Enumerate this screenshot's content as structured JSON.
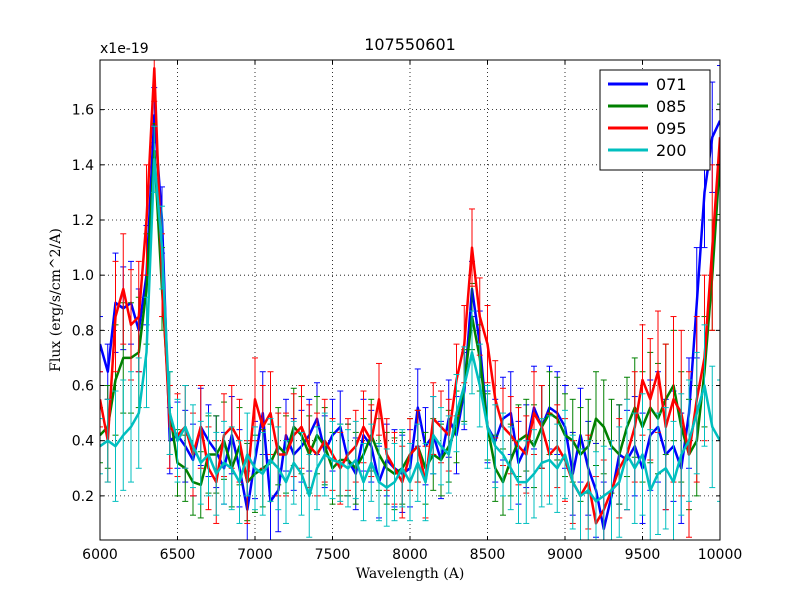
{
  "chart_data": {
    "type": "line",
    "title": "107550601",
    "xlabel": "Wavelength (A)",
    "ylabel": "Flux (erg/s/cm^2/A)",
    "y_offset_label": "x1e-19",
    "xlim": [
      6000,
      10000
    ],
    "ylim": [
      0.04,
      1.78
    ],
    "x_ticks": [
      6000,
      6500,
      7000,
      7500,
      8000,
      8500,
      9000,
      9500,
      10000
    ],
    "x_tick_labels": [
      "6000",
      "6500",
      "7000",
      "7500",
      "8000",
      "8500",
      "9000",
      "9500",
      "10000"
    ],
    "y_ticks": [
      0.2,
      0.4,
      0.6,
      0.8,
      1.0,
      1.2,
      1.4,
      1.6
    ],
    "y_tick_labels": [
      "0.2",
      "0.4",
      "0.6",
      "0.8",
      "1.0",
      "1.2",
      "1.4",
      "1.6"
    ],
    "grid": true,
    "legend_position": "top-right",
    "x": [
      6000,
      6050,
      6100,
      6150,
      6200,
      6250,
      6300,
      6350,
      6400,
      6450,
      6500,
      6550,
      6600,
      6650,
      6700,
      6750,
      6800,
      6850,
      6900,
      6950,
      7000,
      7050,
      7100,
      7150,
      7200,
      7250,
      7300,
      7350,
      7400,
      7450,
      7500,
      7550,
      7600,
      7650,
      7700,
      7750,
      7800,
      7850,
      7900,
      7950,
      8000,
      8050,
      8100,
      8150,
      8200,
      8250,
      8300,
      8350,
      8400,
      8450,
      8500,
      8550,
      8600,
      8650,
      8700,
      8750,
      8800,
      8850,
      8900,
      8950,
      9000,
      9050,
      9100,
      9150,
      9200,
      9250,
      9300,
      9350,
      9400,
      9450,
      9500,
      9550,
      9600,
      9650,
      9700,
      9750,
      9800,
      9850,
      9900,
      9950,
      10000
    ],
    "series": [
      {
        "name": "071",
        "color": "#0000ff",
        "values": [
          0.75,
          0.65,
          0.9,
          0.88,
          0.9,
          0.8,
          1.0,
          1.58,
          1.2,
          0.4,
          0.42,
          0.38,
          0.33,
          0.45,
          0.4,
          0.36,
          0.3,
          0.42,
          0.3,
          0.15,
          0.33,
          0.5,
          0.18,
          0.22,
          0.42,
          0.35,
          0.38,
          0.42,
          0.48,
          0.36,
          0.42,
          0.45,
          0.33,
          0.28,
          0.42,
          0.38,
          0.25,
          0.33,
          0.3,
          0.28,
          0.3,
          0.52,
          0.38,
          0.42,
          0.33,
          0.48,
          0.42,
          0.58,
          0.95,
          0.75,
          0.45,
          0.4,
          0.48,
          0.5,
          0.32,
          0.38,
          0.52,
          0.45,
          0.52,
          0.5,
          0.45,
          0.28,
          0.42,
          0.3,
          0.22,
          0.08,
          0.2,
          0.35,
          0.33,
          0.38,
          0.3,
          0.42,
          0.45,
          0.35,
          0.38,
          0.3,
          0.5,
          0.9,
          1.3,
          1.5,
          1.56
        ],
        "err": [
          0.1,
          0.1,
          0.18,
          0.15,
          0.15,
          0.15,
          0.18,
          0.1,
          0.12,
          0.12,
          0.12,
          0.13,
          0.13,
          0.14,
          0.13,
          0.13,
          0.13,
          0.14,
          0.14,
          0.14,
          0.14,
          0.15,
          0.15,
          0.15,
          0.13,
          0.13,
          0.13,
          0.13,
          0.13,
          0.13,
          0.13,
          0.13,
          0.13,
          0.13,
          0.13,
          0.13,
          0.13,
          0.13,
          0.14,
          0.14,
          0.14,
          0.14,
          0.14,
          0.14,
          0.14,
          0.14,
          0.14,
          0.14,
          0.1,
          0.12,
          0.13,
          0.15,
          0.15,
          0.15,
          0.15,
          0.15,
          0.15,
          0.15,
          0.15,
          0.15,
          0.15,
          0.15,
          0.17,
          0.17,
          0.17,
          0.17,
          0.17,
          0.18,
          0.18,
          0.18,
          0.2,
          0.2,
          0.2,
          0.2,
          0.2,
          0.2,
          0.2,
          0.2,
          0.2,
          0.2,
          0.2
        ]
      },
      {
        "name": "085",
        "color": "#008000",
        "values": [
          0.42,
          0.45,
          0.62,
          0.7,
          0.7,
          0.72,
          0.95,
          1.45,
          0.95,
          0.5,
          0.32,
          0.3,
          0.25,
          0.24,
          0.35,
          0.35,
          0.4,
          0.3,
          0.38,
          0.25,
          0.28,
          0.3,
          0.32,
          0.38,
          0.35,
          0.45,
          0.42,
          0.35,
          0.42,
          0.38,
          0.3,
          0.33,
          0.33,
          0.3,
          0.35,
          0.42,
          0.35,
          0.3,
          0.28,
          0.3,
          0.35,
          0.38,
          0.3,
          0.35,
          0.33,
          0.38,
          0.45,
          0.6,
          0.85,
          0.7,
          0.45,
          0.3,
          0.25,
          0.33,
          0.4,
          0.42,
          0.38,
          0.45,
          0.5,
          0.48,
          0.42,
          0.4,
          0.35,
          0.38,
          0.48,
          0.45,
          0.38,
          0.35,
          0.45,
          0.52,
          0.45,
          0.52,
          0.48,
          0.55,
          0.6,
          0.45,
          0.35,
          0.4,
          0.65,
          1.0,
          1.42
        ],
        "err": [
          0.1,
          0.15,
          0.2,
          0.2,
          0.2,
          0.2,
          0.2,
          0.1,
          0.15,
          0.15,
          0.12,
          0.12,
          0.12,
          0.12,
          0.14,
          0.14,
          0.14,
          0.14,
          0.14,
          0.14,
          0.14,
          0.14,
          0.14,
          0.14,
          0.14,
          0.14,
          0.14,
          0.14,
          0.14,
          0.14,
          0.13,
          0.13,
          0.13,
          0.13,
          0.13,
          0.13,
          0.13,
          0.13,
          0.13,
          0.13,
          0.13,
          0.13,
          0.13,
          0.13,
          0.13,
          0.13,
          0.13,
          0.13,
          0.12,
          0.12,
          0.12,
          0.12,
          0.12,
          0.13,
          0.13,
          0.13,
          0.15,
          0.15,
          0.15,
          0.15,
          0.15,
          0.15,
          0.17,
          0.17,
          0.17,
          0.17,
          0.17,
          0.18,
          0.18,
          0.18,
          0.2,
          0.2,
          0.2,
          0.2,
          0.2,
          0.2,
          0.2,
          0.2,
          0.2,
          0.2,
          0.2
        ]
      },
      {
        "name": "095",
        "color": "#ff0000",
        "values": [
          0.55,
          0.4,
          0.85,
          0.95,
          0.82,
          0.85,
          1.2,
          1.75,
          1.0,
          0.45,
          0.42,
          0.45,
          0.35,
          0.45,
          0.3,
          0.25,
          0.42,
          0.45,
          0.4,
          0.25,
          0.55,
          0.45,
          0.5,
          0.35,
          0.35,
          0.42,
          0.45,
          0.38,
          0.35,
          0.4,
          0.35,
          0.3,
          0.35,
          0.38,
          0.45,
          0.4,
          0.55,
          0.35,
          0.3,
          0.25,
          0.35,
          0.38,
          0.25,
          0.48,
          0.45,
          0.42,
          0.62,
          0.75,
          1.1,
          0.85,
          0.75,
          0.55,
          0.45,
          0.42,
          0.38,
          0.35,
          0.5,
          0.45,
          0.35,
          0.38,
          0.33,
          0.25,
          0.2,
          0.25,
          0.1,
          0.15,
          0.22,
          0.3,
          0.35,
          0.45,
          0.62,
          0.55,
          0.65,
          0.45,
          0.55,
          0.5,
          0.35,
          0.55,
          0.7,
          1.1,
          1.5
        ],
        "err": [
          0.1,
          0.15,
          0.2,
          0.2,
          0.2,
          0.2,
          0.2,
          0.12,
          0.15,
          0.15,
          0.15,
          0.15,
          0.15,
          0.15,
          0.15,
          0.15,
          0.15,
          0.15,
          0.15,
          0.15,
          0.15,
          0.15,
          0.15,
          0.15,
          0.15,
          0.15,
          0.15,
          0.15,
          0.15,
          0.15,
          0.13,
          0.13,
          0.13,
          0.13,
          0.13,
          0.13,
          0.13,
          0.13,
          0.13,
          0.13,
          0.13,
          0.13,
          0.13,
          0.13,
          0.13,
          0.13,
          0.13,
          0.14,
          0.14,
          0.14,
          0.14,
          0.14,
          0.14,
          0.14,
          0.14,
          0.14,
          0.15,
          0.15,
          0.15,
          0.15,
          0.15,
          0.15,
          0.17,
          0.17,
          0.17,
          0.18,
          0.18,
          0.18,
          0.2,
          0.2,
          0.2,
          0.22,
          0.22,
          0.3,
          0.3,
          0.3,
          0.3,
          0.3,
          0.3,
          0.3,
          0.3
        ]
      },
      {
        "name": "200",
        "color": "#00bfbf",
        "values": [
          0.38,
          0.4,
          0.38,
          0.42,
          0.45,
          0.5,
          0.72,
          1.42,
          1.1,
          0.5,
          0.4,
          0.45,
          0.38,
          0.32,
          0.35,
          0.28,
          0.32,
          0.3,
          0.25,
          0.35,
          0.3,
          0.28,
          0.33,
          0.3,
          0.25,
          0.32,
          0.28,
          0.2,
          0.3,
          0.35,
          0.33,
          0.32,
          0.3,
          0.33,
          0.25,
          0.32,
          0.25,
          0.23,
          0.25,
          0.3,
          0.25,
          0.32,
          0.25,
          0.42,
          0.38,
          0.35,
          0.5,
          0.6,
          0.72,
          0.6,
          0.45,
          0.38,
          0.35,
          0.3,
          0.25,
          0.25,
          0.28,
          0.32,
          0.33,
          0.3,
          0.35,
          0.25,
          0.2,
          0.22,
          0.18,
          0.2,
          0.22,
          0.25,
          0.35,
          0.3,
          0.35,
          0.22,
          0.28,
          0.3,
          0.25,
          0.35,
          0.4,
          0.5,
          0.6,
          0.45,
          0.4
        ],
        "err": [
          0.1,
          0.15,
          0.2,
          0.2,
          0.2,
          0.2,
          0.2,
          0.12,
          0.15,
          0.15,
          0.15,
          0.15,
          0.15,
          0.15,
          0.15,
          0.15,
          0.15,
          0.15,
          0.15,
          0.15,
          0.15,
          0.15,
          0.15,
          0.15,
          0.15,
          0.15,
          0.15,
          0.15,
          0.15,
          0.15,
          0.14,
          0.14,
          0.14,
          0.14,
          0.14,
          0.14,
          0.14,
          0.14,
          0.14,
          0.14,
          0.14,
          0.14,
          0.14,
          0.14,
          0.14,
          0.14,
          0.14,
          0.14,
          0.15,
          0.15,
          0.15,
          0.15,
          0.15,
          0.15,
          0.15,
          0.15,
          0.16,
          0.16,
          0.16,
          0.16,
          0.16,
          0.17,
          0.17,
          0.18,
          0.18,
          0.18,
          0.18,
          0.2,
          0.2,
          0.2,
          0.22,
          0.22,
          0.22,
          0.22,
          0.22,
          0.22,
          0.22,
          0.22,
          0.22,
          0.22,
          0.22
        ]
      }
    ]
  }
}
